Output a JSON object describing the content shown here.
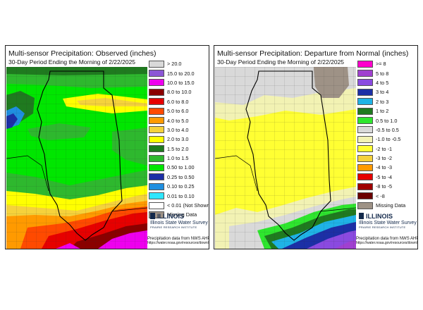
{
  "panels": [
    {
      "title": "Multi-sensor Precipitation: Observed (inches)",
      "subtitle": "30-Day Period Ending the Morning of 2/22/2025",
      "legend": [
        {
          "label": "> 20.0",
          "color": "#d9d9d9"
        },
        {
          "label": "15.0 to 20.0",
          "color": "#8c57d6"
        },
        {
          "label": "10.0 to 15.0",
          "color": "#ee00ee"
        },
        {
          "label": "8.0 to 10.0",
          "color": "#8a0000"
        },
        {
          "label": "6.0 to 8.0",
          "color": "#e60000"
        },
        {
          "label": "5.0 to 6.0",
          "color": "#ff4a00"
        },
        {
          "label": "4.0 to 5.0",
          "color": "#ff9a00"
        },
        {
          "label": "3.0 to 4.0",
          "color": "#f5d23c"
        },
        {
          "label": "2.0 to 3.0",
          "color": "#ffff00"
        },
        {
          "label": "1.5 to 2.0",
          "color": "#1f7a1f"
        },
        {
          "label": "1.0 to 1.5",
          "color": "#2eb82e"
        },
        {
          "label": "0.50 to 1.00",
          "color": "#00e600"
        },
        {
          "label": "0.25 to 0.50",
          "color": "#1c2fa6"
        },
        {
          "label": "0.10 to 0.25",
          "color": "#1f8fe0"
        },
        {
          "label": "0.01 to 0.10",
          "color": "#2ee6ff"
        },
        {
          "label": "< 0.01 (Not Shown)",
          "color": "#ffffff"
        },
        {
          "label": "Missing Data",
          "color": "#9e9286"
        }
      ]
    },
    {
      "title": "Multi-sensor Precipitation: Departure from Normal (inches)",
      "subtitle": "30-Day Period Ending the Morning of 2/22/2025",
      "legend": [
        {
          "label": ">= 8",
          "color": "#ff00cc"
        },
        {
          "label": "5 to 8",
          "color": "#a040d0"
        },
        {
          "label": "4 to 5",
          "color": "#8a4ae0"
        },
        {
          "label": "3 to 4",
          "color": "#1c2fa6"
        },
        {
          "label": "2 to 3",
          "color": "#1fb3e6"
        },
        {
          "label": "1 to 2",
          "color": "#1f7a1f"
        },
        {
          "label": "0.5 to 1.0",
          "color": "#2ee62e"
        },
        {
          "label": "-0.5 to 0.5",
          "color": "#d9d9d9"
        },
        {
          "label": "-1.0 to -0.5",
          "color": "#f2f2b3"
        },
        {
          "label": "-2 to -1",
          "color": "#ffff33"
        },
        {
          "label": "-3 to -2",
          "color": "#f5d23c"
        },
        {
          "label": "-4 to -3",
          "color": "#ff9a00"
        },
        {
          "label": "-5 to -4",
          "color": "#e60000"
        },
        {
          "label": "-8 to -5",
          "color": "#a00000"
        },
        {
          "label": "< -8",
          "color": "#6b0000"
        },
        {
          "label": "Missing Data",
          "color": "#9e9286"
        }
      ]
    }
  ],
  "branding": {
    "logo": "ILLINOIS",
    "org": "Illinois State Water Survey",
    "institute": "PRAIRIE RESEARCH INSTITUTE",
    "source_line1": "Precipitation data from NWS AHPS:",
    "source_line2": "https://water.noaa.gov/resources/downloads/precip"
  }
}
